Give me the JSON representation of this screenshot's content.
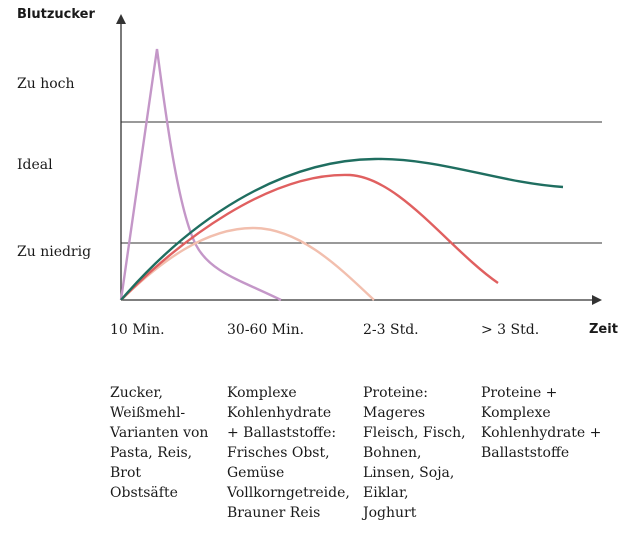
{
  "chart_data": {
    "type": "line",
    "ylabel": "Blutzucker",
    "xlabel": "Zeit",
    "levels": [
      {
        "label": "Zu hoch"
      },
      {
        "label": "Ideal"
      },
      {
        "label": "Zu niedrig"
      }
    ],
    "ticks": [
      "10 Min.",
      "30-60 Min.",
      "2-3 Std.",
      "> 3 Std."
    ],
    "descriptions": [
      [
        "Zucker,",
        "Weißmehl-",
        "Varianten von",
        "Pasta, Reis,",
        "Brot",
        "Obstsäfte"
      ],
      [
        "Komplexe",
        "Kohlenhydrate",
        "+ Ballaststoffe:",
        "Frisches Obst,",
        "Gemüse",
        "Vollkorngetreide,",
        "Brauner Reis"
      ],
      [
        "Proteine:",
        "Mageres",
        "Fleisch, Fisch,",
        "Bohnen,",
        "Linsen, Soja,",
        "Eiklar,",
        "Joghurt"
      ],
      [
        "Proteine +",
        "Komplexe",
        "Kohlenhydrate +",
        "Ballaststoffe"
      ]
    ],
    "colors": {
      "sugar": "#c497c8",
      "complex_carbs": "#f2bfae",
      "proteins": "#e06060",
      "proteins_complex": "#1f6e60",
      "axis": "#333333"
    }
  }
}
